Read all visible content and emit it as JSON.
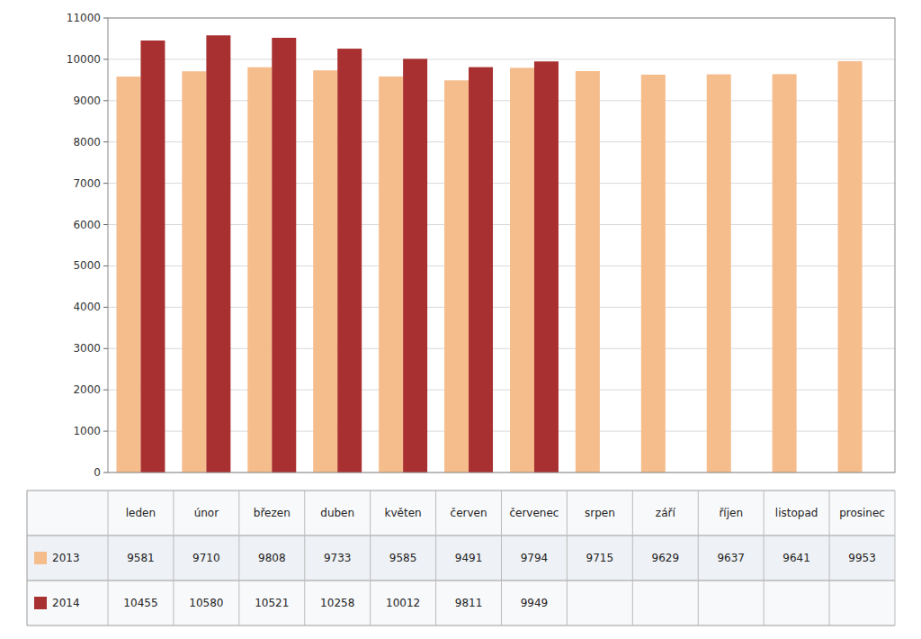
{
  "chart_data": {
    "type": "bar",
    "categories": [
      "leden",
      "únor",
      "březen",
      "duben",
      "květen",
      "červen",
      "červenec",
      "srpen",
      "září",
      "říjen",
      "listopad",
      "prosinec"
    ],
    "series": [
      {
        "name": "2013",
        "color": "#F5BC8C",
        "values": [
          9581,
          9710,
          9808,
          9733,
          9585,
          9491,
          9794,
          9715,
          9629,
          9637,
          9641,
          9953
        ]
      },
      {
        "name": "2014",
        "color": "#A93030",
        "values": [
          10455,
          10580,
          10521,
          10258,
          10012,
          9811,
          9949,
          null,
          null,
          null,
          null,
          null
        ]
      }
    ],
    "ylim": [
      0,
      11000
    ],
    "yticks": [
      0,
      1000,
      2000,
      3000,
      4000,
      5000,
      6000,
      7000,
      8000,
      9000,
      10000,
      11000
    ],
    "grid": true
  }
}
